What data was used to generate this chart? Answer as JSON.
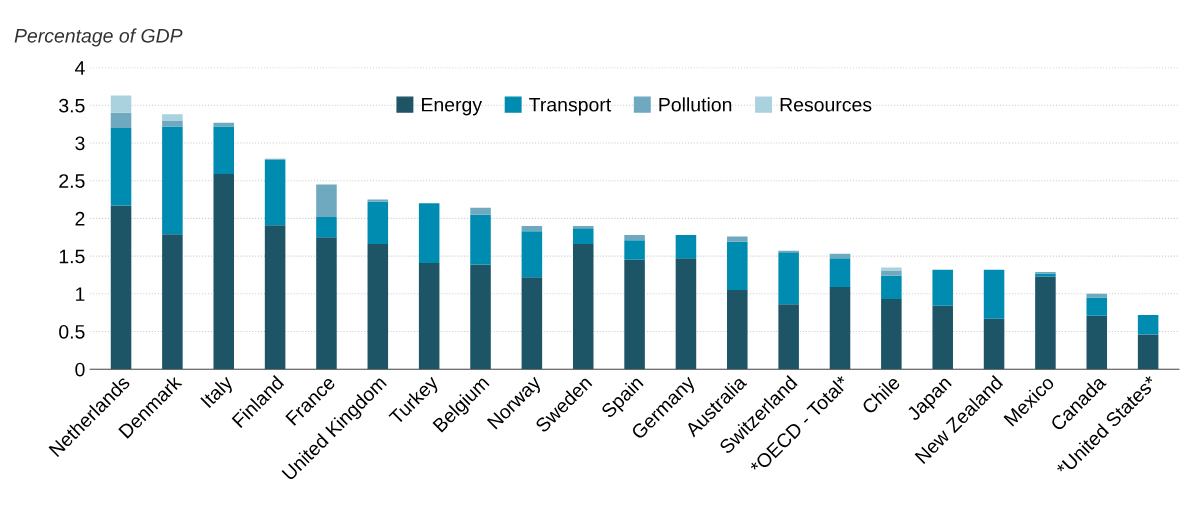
{
  "chart_data": {
    "type": "bar",
    "stacked": true,
    "ylabel": "Percentage of GDP",
    "categories": [
      "Netherlands",
      "Denmark",
      "Italy",
      "Finland",
      "France",
      "United Kingdom",
      "Turkey",
      "Belgium",
      "Norway",
      "Sweden",
      "Spain",
      "Germany",
      "Australia",
      "Switzerland",
      "*OECD - Total*",
      "Chile",
      "Japan",
      "New Zealand",
      "Mexico",
      "Canada",
      "*United States*"
    ],
    "series": [
      {
        "name": "Energy",
        "color": "#1d5466",
        "values": [
          2.17,
          1.79,
          2.59,
          1.91,
          1.75,
          1.66,
          1.41,
          1.39,
          1.22,
          1.66,
          1.45,
          1.47,
          1.05,
          0.86,
          1.09,
          0.93,
          0.84,
          0.67,
          1.23,
          0.71,
          0.46
        ]
      },
      {
        "name": "Transport",
        "color": "#008bb0",
        "values": [
          1.03,
          1.43,
          0.63,
          0.87,
          0.27,
          0.56,
          0.79,
          0.66,
          0.61,
          0.21,
          0.26,
          0.31,
          0.64,
          0.69,
          0.38,
          0.31,
          0.48,
          0.65,
          0.04,
          0.24,
          0.26
        ]
      },
      {
        "name": "Pollution",
        "color": "#6fa9bf",
        "values": [
          0.2,
          0.08,
          0.05,
          0.01,
          0.43,
          0.03,
          0,
          0.09,
          0.07,
          0.03,
          0.07,
          0,
          0.07,
          0.02,
          0.06,
          0.07,
          0,
          0,
          0.02,
          0.05,
          0
        ]
      },
      {
        "name": "Resources",
        "color": "#a9d1de",
        "values": [
          0.23,
          0.08,
          0,
          0,
          0,
          0,
          0,
          0,
          0,
          0,
          0,
          0,
          0,
          0,
          0,
          0.04,
          0,
          0,
          0,
          0,
          0
        ]
      }
    ],
    "ylim": [
      0,
      4
    ],
    "yticks": [
      0,
      0.5,
      1,
      1.5,
      2,
      2.5,
      3,
      3.5,
      4
    ],
    "grid": "y",
    "legend": "top"
  }
}
